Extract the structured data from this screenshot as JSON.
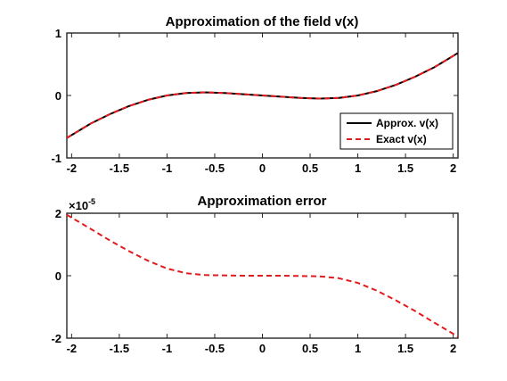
{
  "chart_data": [
    {
      "type": "line",
      "title": "Approximation of the field v(x)",
      "xlim": [
        -2.05,
        2.05
      ],
      "ylim": [
        -1,
        1
      ],
      "xticks": [
        -2,
        -1.5,
        -1,
        -0.5,
        0,
        0.5,
        1,
        1.5,
        2
      ],
      "xtick_labels": [
        "-2",
        "-1.5",
        "-1",
        "-0.5",
        "0",
        "0.5",
        "1",
        "1.5",
        "2"
      ],
      "yticks": [
        -1,
        0,
        1
      ],
      "ytick_labels": [
        "-1",
        "0",
        "1"
      ],
      "legend_position": "bottom-right",
      "series": [
        {
          "name": "Approx. v(x)",
          "color": "#000000",
          "style": "solid",
          "x": [
            -2.05,
            -1.8,
            -1.6,
            -1.4,
            -1.2,
            -1.0,
            -0.8,
            -0.6,
            -0.4,
            -0.2,
            0.0,
            0.2,
            0.4,
            0.6,
            0.8,
            1.0,
            1.2,
            1.4,
            1.6,
            1.8,
            2.05
          ],
          "y": [
            -0.68,
            -0.45,
            -0.3,
            -0.17,
            -0.07,
            0.0,
            0.04,
            0.05,
            0.04,
            0.02,
            0.0,
            -0.02,
            -0.04,
            -0.05,
            -0.04,
            0.0,
            0.07,
            0.17,
            0.3,
            0.45,
            0.68
          ]
        },
        {
          "name": "Exact v(x)",
          "color": "#e31a1c",
          "style": "dashed",
          "x": [
            -2.05,
            -1.8,
            -1.6,
            -1.4,
            -1.2,
            -1.0,
            -0.8,
            -0.6,
            -0.4,
            -0.2,
            0.0,
            0.2,
            0.4,
            0.6,
            0.8,
            1.0,
            1.2,
            1.4,
            1.6,
            1.8,
            2.05
          ],
          "y": [
            -0.68,
            -0.45,
            -0.3,
            -0.17,
            -0.07,
            0.0,
            0.04,
            0.05,
            0.04,
            0.02,
            0.0,
            -0.02,
            -0.04,
            -0.05,
            -0.04,
            0.0,
            0.07,
            0.17,
            0.3,
            0.45,
            0.68
          ]
        }
      ]
    },
    {
      "type": "line",
      "title": "Approximation error",
      "exponent_base": "×10",
      "exponent_power": "-5",
      "xlim": [
        -2.05,
        2.05
      ],
      "ylim": [
        -2,
        2
      ],
      "xticks": [
        -2,
        -1.5,
        -1,
        -0.5,
        0,
        0.5,
        1,
        1.5,
        2
      ],
      "xtick_labels": [
        "-2",
        "-1.5",
        "-1",
        "-0.5",
        "0",
        "0.5",
        "1",
        "1.5",
        "2"
      ],
      "yticks": [
        -2,
        0,
        2
      ],
      "ytick_labels": [
        "-2",
        "0",
        "2"
      ],
      "series": [
        {
          "color": "#e31a1c",
          "style": "dashed",
          "x": [
            -2.05,
            -1.8,
            -1.6,
            -1.4,
            -1.2,
            -1.0,
            -0.8,
            -0.6,
            -0.4,
            -0.2,
            0.0,
            0.2,
            0.4,
            0.6,
            0.8,
            1.0,
            1.2,
            1.4,
            1.6,
            1.8,
            2.05
          ],
          "y": [
            1.95,
            1.5,
            1.13,
            0.79,
            0.48,
            0.23,
            0.08,
            0.02,
            0.01,
            0.0,
            0.0,
            0.0,
            -0.01,
            -0.02,
            -0.08,
            -0.23,
            -0.48,
            -0.79,
            -1.13,
            -1.5,
            -1.95
          ]
        }
      ]
    }
  ]
}
